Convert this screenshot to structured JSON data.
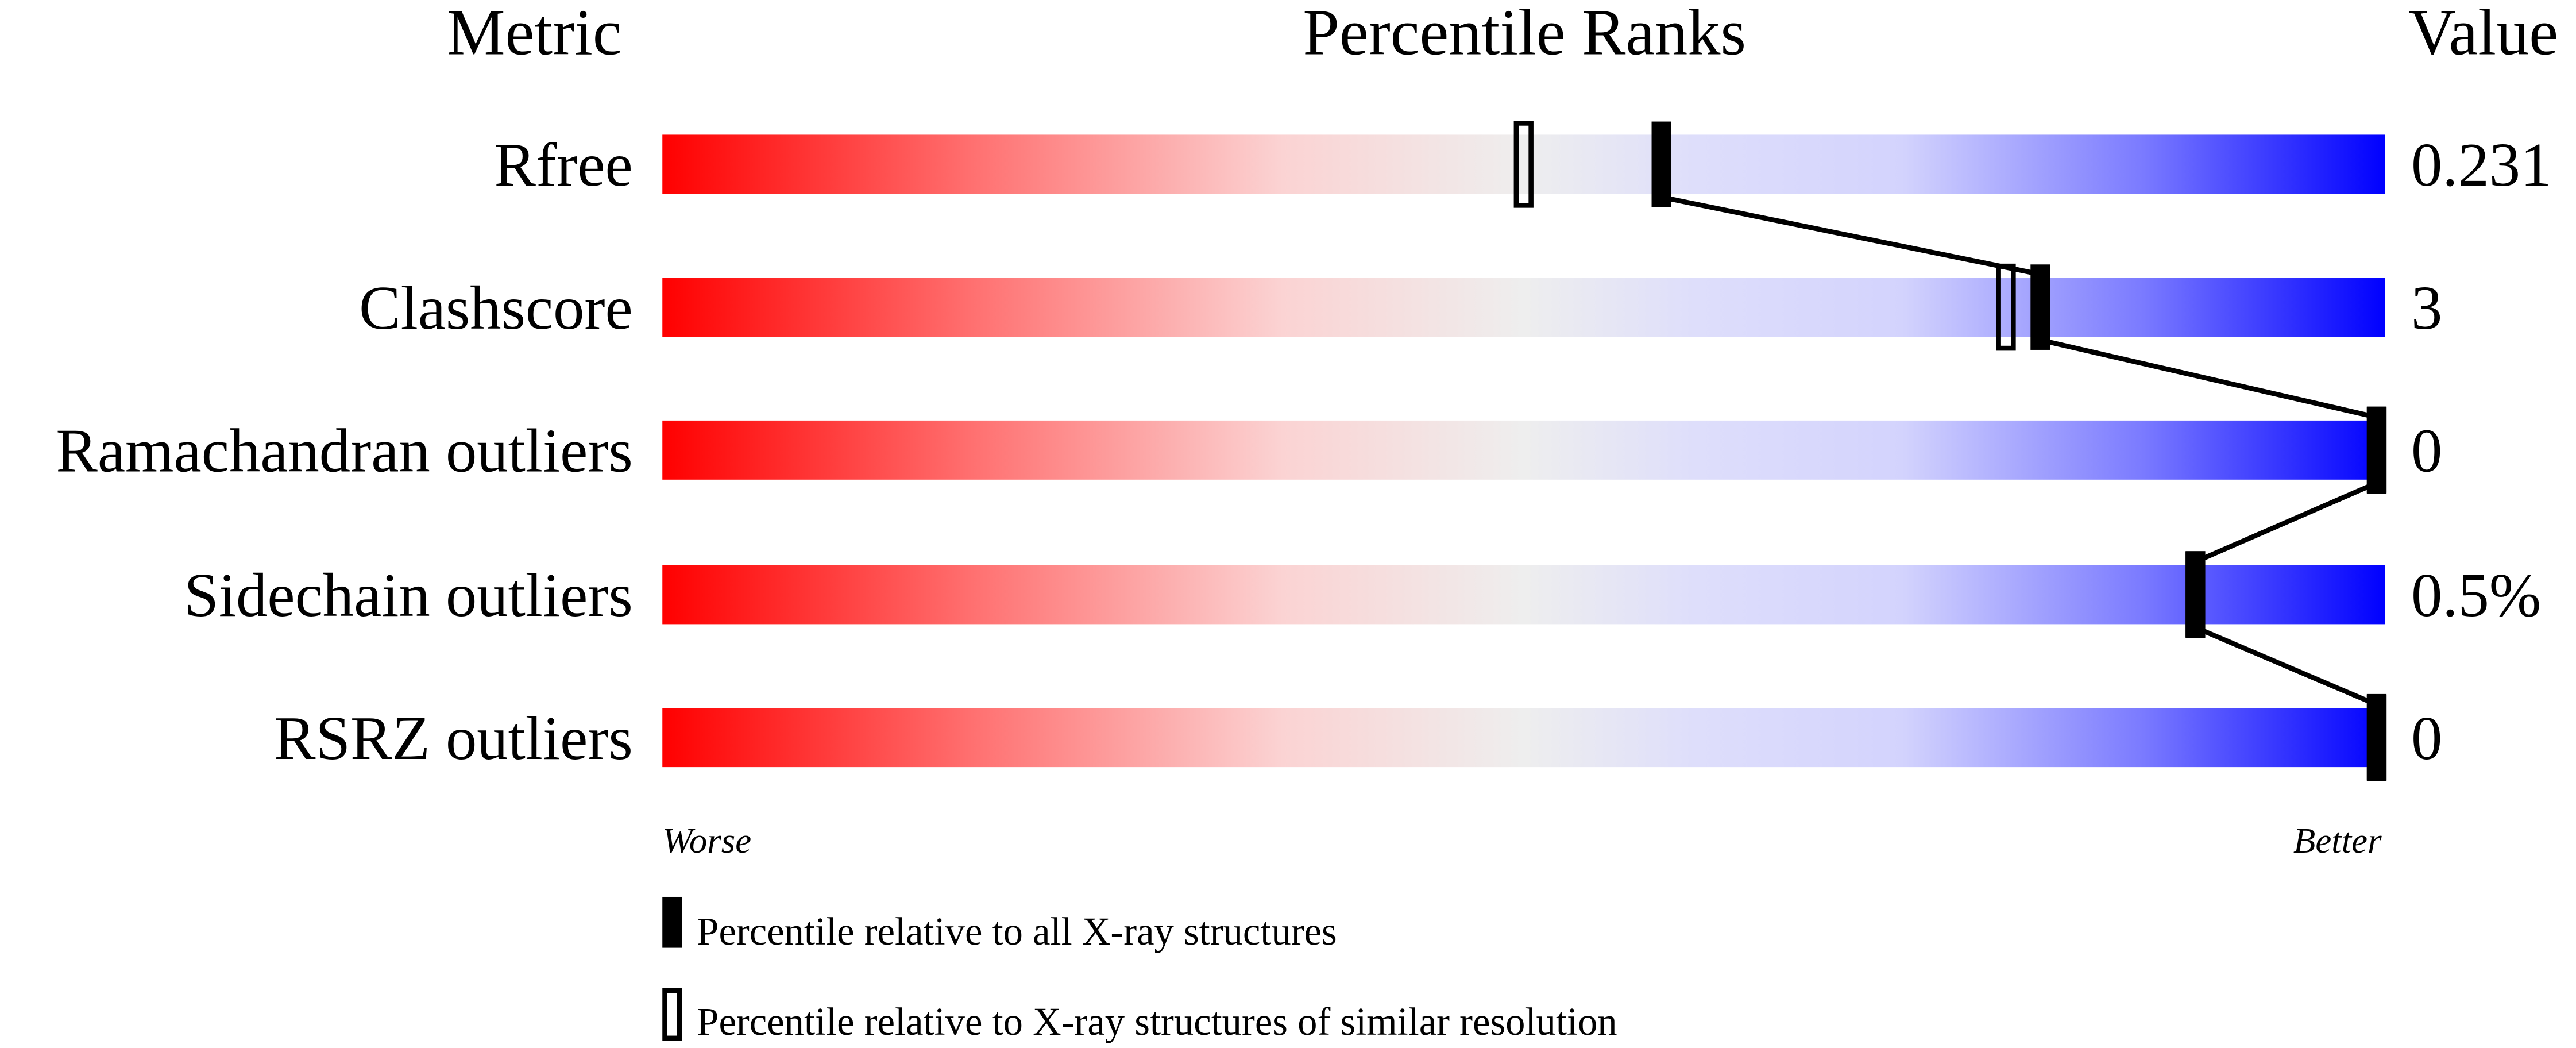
{
  "chart_data": {
    "type": "bar",
    "headers": {
      "metric": "Metric",
      "ranks": "Percentile Ranks",
      "value": "Value"
    },
    "xlim": [
      0,
      100
    ],
    "metrics": [
      {
        "name": "Rfree",
        "value": "0.231",
        "percentile_all": 58,
        "percentile_similar": 50
      },
      {
        "name": "Clashscore",
        "value": "3",
        "percentile_all": 80,
        "percentile_similar": 78
      },
      {
        "name": "Ramachandran outliers",
        "value": "0",
        "percentile_all": 100,
        "percentile_similar": 100
      },
      {
        "name": "Sidechain outliers",
        "value": "0.5%",
        "percentile_all": 89,
        "percentile_similar": 89
      },
      {
        "name": "RSRZ outliers",
        "value": "0",
        "percentile_all": 100,
        "percentile_similar": 100
      }
    ],
    "axis_labels": {
      "left": "Worse",
      "right": "Better"
    },
    "legend": {
      "all": "Percentile relative to all X-ray structures",
      "similar": "Percentile relative to X-ray structures of similar resolution"
    },
    "colors": {
      "worse": "#ff0000",
      "middle": "#eeeeee",
      "better": "#0000ff",
      "marker": "#000000"
    }
  }
}
